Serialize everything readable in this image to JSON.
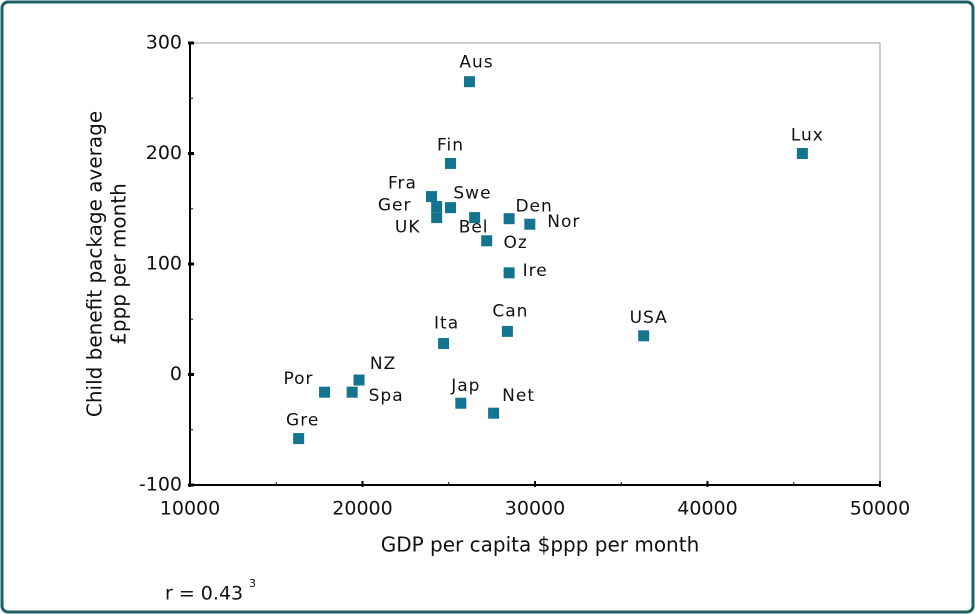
{
  "chart_data": {
    "type": "scatter",
    "xlabel": "GDP per capita $ppp per month",
    "ylabel": [
      "Child benefit package average",
      "£ppp per month"
    ],
    "note": "r = 0.43",
    "note_marker": "3",
    "color": "#13748f",
    "labels": [
      "Aus",
      "Lux",
      "Fin",
      "Fra",
      "Ger",
      "Swe",
      "UK",
      "Bel",
      "Den",
      "Nor",
      "Oz",
      "Ire",
      "Can",
      "USA",
      "Ita",
      "NZ",
      "Por",
      "Spa",
      "Jap",
      "Net",
      "Gre"
    ],
    "x": [
      26200,
      45500,
      25100,
      24000,
      24300,
      25100,
      24300,
      26500,
      28500,
      29700,
      27200,
      28500,
      28400,
      36300,
      24700,
      19800,
      17800,
      19400,
      25700,
      27600,
      16300
    ],
    "y": [
      265,
      200,
      191,
      161,
      152,
      151,
      142,
      142,
      141,
      136,
      121,
      92,
      39,
      35,
      28,
      -5,
      -16,
      -16,
      -26,
      -35,
      -58
    ],
    "xlim": [
      10000,
      50000
    ],
    "ylim": [
      -100,
      300
    ],
    "xticks": [
      10000,
      20000,
      30000,
      40000,
      50000
    ],
    "yticks": [
      -100,
      0,
      100,
      200,
      300
    ]
  }
}
